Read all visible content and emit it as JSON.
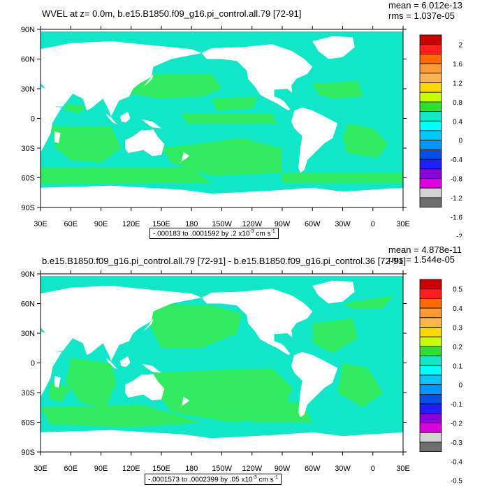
{
  "panels": [
    {
      "title": "WVEL at z=   0.0m, b.e15.B1850.f09_g16.pi_control.all.79 [72-91]",
      "mean": "mean = 6.012e-13",
      "rms": "rms = 1.037e-05",
      "range_text": "-.000183 to .0001592 by .2 x10",
      "range_exp": "-3",
      "range_unit": " cm s",
      "range_unit_exp": "-1",
      "lat_ticks": [
        "90N",
        "60N",
        "30N",
        "0",
        "30S",
        "60S",
        "90S"
      ],
      "lon_ticks": [
        "30E",
        "60E",
        "90E",
        "120E",
        "150E",
        "180",
        "150W",
        "120W",
        "90W",
        "60W",
        "30W",
        "0",
        "30E"
      ],
      "colorbar_labels": [
        "2",
        "1.6",
        "1.2",
        "0.8",
        "0.4",
        "0",
        "-0.4",
        "-0.8",
        "-1.2",
        "-1.6",
        "-2"
      ]
    },
    {
      "title": "b.e15.B1850.f09_g16.pi_control.all.79 [72-91] - b.e15.B1850.f09_g16.pi_control.36 [72-91]",
      "mean": "mean = 4.878e-11",
      "rms": "rms = 1.544e-05",
      "range_text": "-.0001573 to .0002399 by .05 x10",
      "range_exp": "-3",
      "range_unit": " cm s",
      "range_unit_exp": "-1",
      "lat_ticks": [
        "90N",
        "60N",
        "30N",
        "0",
        "30S",
        "60S",
        "90S"
      ],
      "lon_ticks": [
        "30E",
        "60E",
        "90E",
        "120E",
        "150E",
        "180",
        "150W",
        "120W",
        "90W",
        "60W",
        "30W",
        "0",
        "30E"
      ],
      "colorbar_labels": [
        "0.5",
        "0.4",
        "0.3",
        "0.2",
        "0.1",
        "0",
        "-0.1",
        "-0.2",
        "-0.3",
        "-0.4",
        "-0.5"
      ]
    }
  ],
  "colors": {
    "ocean_cyan": "#12e6c8",
    "ocean_green": "#30ea60",
    "land": "#ffffff",
    "colorbar": [
      "#c80000",
      "#ff1e1e",
      "#ff6a00",
      "#ff9a35",
      "#ffb450",
      "#ffd700",
      "#c8ff00",
      "#32dc32",
      "#14e6c8",
      "#00ffff",
      "#00c8ff",
      "#0096ff",
      "#0050e6",
      "#1e1eff",
      "#8c00dc",
      "#dc00dc",
      "#d2d2d2",
      "#6e6e6e"
    ]
  }
}
